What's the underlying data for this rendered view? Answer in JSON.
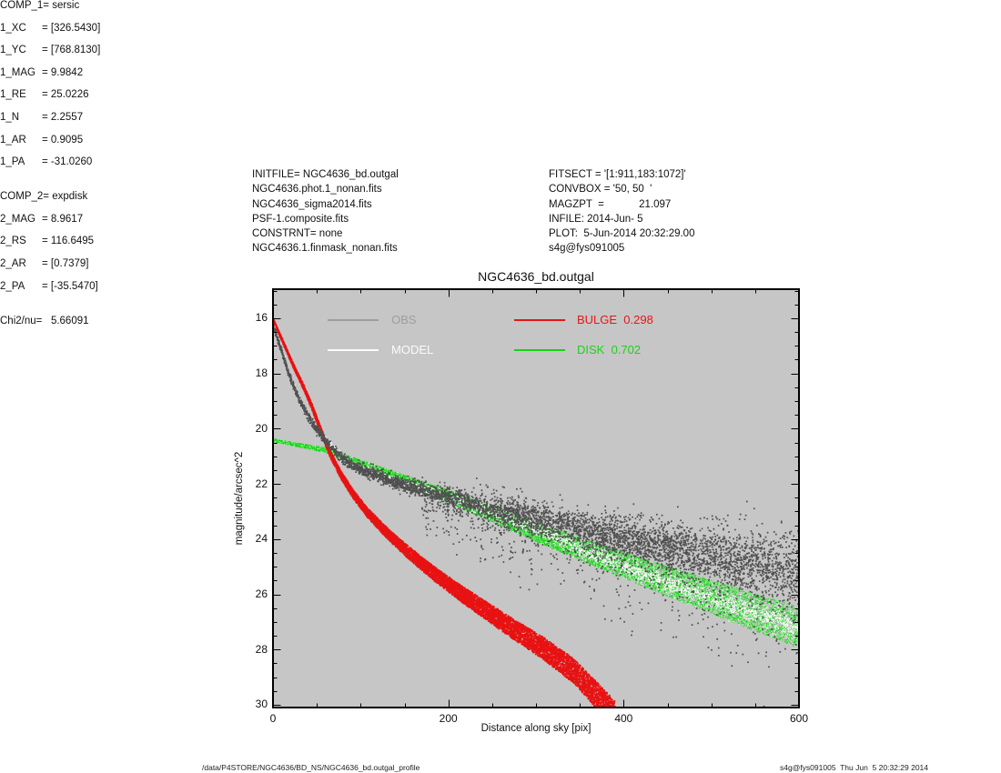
{
  "header": {
    "left_lines": [
      "INITFILE= NGC4636_bd.outgal",
      "NGC4636.phot.1_nonan.fits",
      "NGC4636_sigma2014.fits",
      "PSF-1.composite.fits",
      "CONSTRNT= none",
      "NGC4636.1.finmask_nonan.fits"
    ],
    "center_lines": [
      "FITSECT = '[1:911,183:1072]'",
      "CONVBOX = '50, 50  '",
      "MAGZPT  =            21.097",
      "INFILE: 2014-Jun- 5",
      "PLOT:  5-Jun-2014 20:32:29.00",
      "s4g@fys091005"
    ],
    "right_rows": [
      [
        "COMP_1",
        "= sersic"
      ],
      [
        "1_XC",
        "= [326.5430]"
      ],
      [
        "1_YC",
        "= [768.8130]"
      ],
      [
        "1_MAG",
        "= 9.9842"
      ],
      [
        "1_RE",
        "= 25.0226"
      ],
      [
        "1_N",
        "= 2.2557"
      ],
      [
        "1_AR",
        "= 0.9095"
      ],
      [
        "1_PA",
        "= -31.0260"
      ],
      null,
      [
        "COMP_2",
        "= expdisk"
      ],
      [
        "2_MAG",
        "= 8.9617"
      ],
      [
        "2_RS",
        "= 116.6495"
      ],
      [
        "2_AR",
        "= [0.7379]"
      ],
      [
        "2_PA",
        "= [-35.5470]"
      ],
      null,
      [
        "Chi2/nu=",
        "   5.66091"
      ]
    ]
  },
  "footer": {
    "left": "/data/P4STORE/NGC4636/BD_NS/NGC4636_bd.outgal_profile",
    "right": "s4g@fys091005  Thu Jun  5 20:32:29 2014"
  },
  "chart_data": {
    "type": "scatter",
    "title": "NGC4636_bd.outgal",
    "xlabel": "Distance along sky [pix]",
    "ylabel": "magnitude/arcsec^2",
    "xlim": [
      0,
      600
    ],
    "ylim": [
      30.1,
      14.95
    ],
    "xticks": [
      0,
      200,
      400,
      600
    ],
    "xminor_step": 50,
    "yticks": [
      16,
      18,
      20,
      22,
      24,
      26,
      28,
      30
    ],
    "yminor_step": 0.5,
    "background": "#c6c6c6",
    "frame_color": "#000000",
    "grid": false,
    "legend_position": "top-inside",
    "legend": [
      {
        "label": "OBS",
        "color": "#9e9e9e",
        "col": 0,
        "row": 0
      },
      {
        "label": "MODEL",
        "color": "#fbfbfb",
        "col": 0,
        "row": 1
      },
      {
        "label": "BULGE  0.298",
        "color": "#e41717",
        "col": 1,
        "row": 0
      },
      {
        "label": "DISK  0.702",
        "color": "#17d417",
        "col": 1,
        "row": 1
      }
    ],
    "series": [
      {
        "name": "disk",
        "legend": "DISK",
        "kind": "uniform-band",
        "size": 1.1,
        "count": 14000,
        "color_mix": [
          [
            "#10d310",
            0.5
          ],
          [
            "#3fe23f",
            0.27
          ],
          [
            "#93f193",
            0.15
          ],
          [
            "#e9fbe9",
            0.08
          ]
        ],
        "x": [
          0,
          60,
          120,
          200,
          300,
          400,
          500,
          600
        ],
        "mag": [
          20.42,
          20.78,
          21.5,
          22.45,
          23.75,
          24.95,
          26.1,
          27.2
        ],
        "hw0": 0.05,
        "hw1": 0.75,
        "hw_pow": 1.25
      },
      {
        "name": "bulge",
        "legend": "BULGE",
        "kind": "uniform-band",
        "size": 1.8,
        "count": 9000,
        "color_mix": [
          [
            "#e81212",
            1.0
          ]
        ],
        "x": [
          0,
          12,
          23,
          35,
          45,
          55,
          65,
          78,
          92,
          108,
          126,
          146,
          168,
          192,
          218,
          246,
          276,
          308,
          342,
          390
        ],
        "mag": [
          16.05,
          16.9,
          17.7,
          18.5,
          19.25,
          20.1,
          20.9,
          21.7,
          22.4,
          23.05,
          23.65,
          24.25,
          24.85,
          25.45,
          26.05,
          26.65,
          27.3,
          27.95,
          28.75,
          30.35
        ],
        "hw0": 0.04,
        "hw1": 0.5,
        "hw_pow": 1.0
      },
      {
        "name": "model",
        "legend": "MODEL",
        "kind": "gauss-band",
        "size": 1.3,
        "count": 2600,
        "color_mix": [
          [
            "#ffffff",
            1.0
          ]
        ],
        "x": [
          0,
          10,
          20,
          30,
          40,
          55,
          70,
          88,
          110,
          140,
          170,
          200,
          250,
          300,
          350,
          420,
          500,
          600
        ],
        "mag": [
          16.2,
          17.15,
          18.15,
          18.9,
          19.5,
          20.2,
          20.75,
          21.25,
          21.55,
          21.9,
          22.2,
          22.5,
          23.0,
          23.6,
          24.35,
          25.25,
          26.15,
          27.25
        ],
        "sig0": 0.035,
        "sig1": 0.16,
        "sig_pow": 1.0
      },
      {
        "name": "obs",
        "legend": "OBS",
        "kind": "gauss-band",
        "size": 1.7,
        "count": 5200,
        "color_mix": [
          [
            "#4e4e4e",
            0.8
          ],
          [
            "#5a5a5a",
            0.2
          ]
        ],
        "x": [
          0,
          10,
          20,
          30,
          40,
          55,
          70,
          88,
          110,
          140,
          170,
          200,
          250,
          300,
          350,
          400,
          450,
          500,
          550,
          600
        ],
        "mag": [
          16.25,
          17.2,
          18.2,
          18.95,
          19.55,
          20.25,
          20.8,
          21.3,
          21.6,
          21.95,
          22.25,
          22.5,
          22.95,
          23.3,
          23.65,
          24.0,
          24.3,
          24.6,
          24.9,
          25.2
        ],
        "sig0": 0.05,
        "sig1": 0.55,
        "sig_pow": 1.35
      },
      {
        "name": "obs-faint-outliers",
        "kind": "outliers",
        "ref": "obs",
        "size": 1.7,
        "count": 620,
        "color_mix": [
          [
            "#4e4e4e",
            1.0
          ]
        ],
        "xrange": [
          170,
          600
        ],
        "off0": 0.25,
        "spread": 1.7,
        "side": 1
      },
      {
        "name": "obs-bright-outliers",
        "kind": "outliers",
        "ref": "obs",
        "size": 1.7,
        "count": 140,
        "color_mix": [
          [
            "#4e4e4e",
            1.0
          ]
        ],
        "xrange": [
          230,
          600
        ],
        "off0": 0.25,
        "spread": 0.85,
        "side": -1
      }
    ]
  }
}
